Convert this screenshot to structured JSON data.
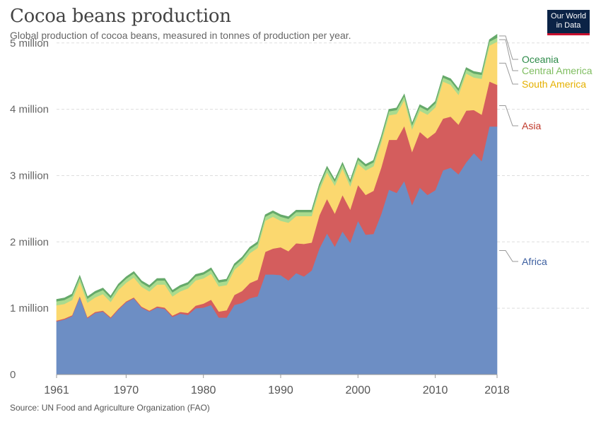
{
  "header": {
    "title": "Cocoa beans production",
    "subtitle": "Global production of cocoa beans, measured in tonnes of production per year."
  },
  "logo": {
    "line1": "Our World",
    "line2": "in Data"
  },
  "footer": {
    "source": "Source: UN Food and Agriculture Organization (FAO)"
  },
  "chart_data": {
    "type": "area",
    "stacked": true,
    "title": "Cocoa beans production",
    "xlabel": "",
    "ylabel": "",
    "xlim": [
      1961,
      2018
    ],
    "ylim": [
      0,
      5200000
    ],
    "grid": true,
    "legend_placement": "right, labels at series ends",
    "x_ticks": [
      {
        "value": 1961,
        "label": "1961"
      },
      {
        "value": 1970,
        "label": "1970"
      },
      {
        "value": 1980,
        "label": "1980"
      },
      {
        "value": 1990,
        "label": "1990"
      },
      {
        "value": 2000,
        "label": "2000"
      },
      {
        "value": 2010,
        "label": "2010"
      },
      {
        "value": 2018,
        "label": "2018"
      }
    ],
    "y_ticks": [
      {
        "value": 0,
        "label": "0"
      },
      {
        "value": 1000000,
        "label": "1 million"
      },
      {
        "value": 2000000,
        "label": "2 million"
      },
      {
        "value": 3000000,
        "label": "3 million"
      },
      {
        "value": 4000000,
        "label": "4 million"
      },
      {
        "value": 5000000,
        "label": "5 million"
      }
    ],
    "x": [
      1961,
      1962,
      1963,
      1964,
      1965,
      1966,
      1967,
      1968,
      1969,
      1970,
      1971,
      1972,
      1973,
      1974,
      1975,
      1976,
      1977,
      1978,
      1979,
      1980,
      1981,
      1982,
      1983,
      1984,
      1985,
      1986,
      1987,
      1988,
      1989,
      1990,
      1991,
      1992,
      1993,
      1994,
      1995,
      1996,
      1997,
      1998,
      1999,
      2000,
      2001,
      2002,
      2003,
      2004,
      2005,
      2006,
      2007,
      2008,
      2009,
      2010,
      2011,
      2012,
      2013,
      2014,
      2015,
      2016,
      2017,
      2018
    ],
    "series": [
      {
        "name": "Africa",
        "color": "#6d8ec4",
        "values": [
          800000,
          830000,
          880000,
          1170000,
          850000,
          930000,
          950000,
          850000,
          980000,
          1090000,
          1150000,
          1010000,
          950000,
          1010000,
          990000,
          870000,
          920000,
          900000,
          1000000,
          1010000,
          1050000,
          860000,
          860000,
          1050000,
          1080000,
          1150000,
          1180000,
          1510000,
          1510000,
          1500000,
          1420000,
          1530000,
          1480000,
          1570000,
          1900000,
          2130000,
          1930000,
          2160000,
          1990000,
          2320000,
          2110000,
          2120000,
          2420000,
          2790000,
          2740000,
          2920000,
          2560000,
          2820000,
          2710000,
          2780000,
          3080000,
          3120000,
          3020000,
          3200000,
          3340000,
          3220000,
          3740000,
          3740000
        ]
      },
      {
        "name": "Asia",
        "color": "#d45d5d",
        "values": [
          15000,
          15000,
          15000,
          15000,
          15000,
          15000,
          15000,
          15000,
          15000,
          15000,
          15000,
          15000,
          15000,
          18000,
          20000,
          20000,
          25000,
          30000,
          40000,
          60000,
          80000,
          90000,
          110000,
          150000,
          180000,
          230000,
          250000,
          340000,
          390000,
          420000,
          440000,
          450000,
          490000,
          420000,
          500000,
          520000,
          500000,
          550000,
          500000,
          540000,
          600000,
          650000,
          700000,
          750000,
          800000,
          830000,
          800000,
          840000,
          850000,
          870000,
          780000,
          770000,
          750000,
          780000,
          650000,
          700000,
          680000,
          630000
        ]
      },
      {
        "name": "South America",
        "color": "#fbd86f",
        "values": [
          230000,
          220000,
          230000,
          220000,
          220000,
          220000,
          250000,
          230000,
          280000,
          280000,
          300000,
          300000,
          290000,
          330000,
          350000,
          290000,
          310000,
          370000,
          380000,
          380000,
          390000,
          380000,
          380000,
          380000,
          420000,
          450000,
          480000,
          470000,
          480000,
          400000,
          430000,
          410000,
          420000,
          400000,
          380000,
          400000,
          420000,
          400000,
          350000,
          320000,
          370000,
          370000,
          380000,
          370000,
          390000,
          390000,
          340000,
          320000,
          360000,
          380000,
          560000,
          480000,
          450000,
          560000,
          490000,
          540000,
          540000,
          650000
        ]
      },
      {
        "name": "Central America",
        "color": "#a9db8e",
        "values": [
          60000,
          60000,
          60000,
          60000,
          60000,
          60000,
          60000,
          60000,
          60000,
          60000,
          60000,
          60000,
          60000,
          60000,
          60000,
          60000,
          60000,
          60000,
          60000,
          60000,
          60000,
          60000,
          60000,
          60000,
          60000,
          60000,
          60000,
          60000,
          60000,
          60000,
          60000,
          60000,
          60000,
          60000,
          60000,
          60000,
          60000,
          60000,
          60000,
          60000,
          60000,
          60000,
          60000,
          60000,
          60000,
          60000,
          60000,
          60000,
          60000,
          60000,
          60000,
          60000,
          60000,
          60000,
          60000,
          60000,
          60000,
          60000
        ]
      },
      {
        "name": "Oceania",
        "color": "#65a96a",
        "values": [
          30000,
          30000,
          30000,
          30000,
          30000,
          30000,
          30000,
          30000,
          30000,
          30000,
          30000,
          30000,
          30000,
          30000,
          30000,
          30000,
          30000,
          30000,
          30000,
          30000,
          30000,
          30000,
          30000,
          30000,
          30000,
          30000,
          30000,
          30000,
          30000,
          30000,
          30000,
          30000,
          30000,
          30000,
          30000,
          30000,
          30000,
          30000,
          30000,
          30000,
          30000,
          30000,
          30000,
          30000,
          30000,
          30000,
          30000,
          30000,
          30000,
          30000,
          30000,
          30000,
          30000,
          30000,
          30000,
          30000,
          30000,
          50000
        ]
      }
    ],
    "label_colors": {
      "Africa": "#3c5fa0",
      "Asia": "#c0392b",
      "South America": "#e5b000",
      "Central America": "#7fbd60",
      "Oceania": "#2e8b4a"
    }
  }
}
